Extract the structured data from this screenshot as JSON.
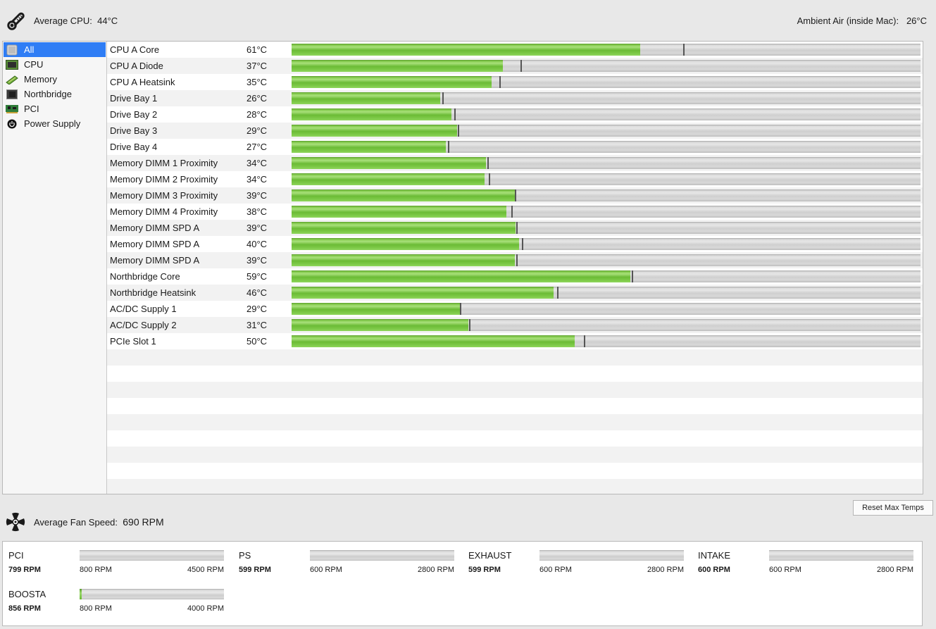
{
  "header": {
    "avg_cpu_label": "Average CPU:",
    "avg_cpu_value": "44°C",
    "ambient_label": "Ambient Air (inside Mac):",
    "ambient_value": "26°C",
    "thermometer_icon": "thermometer-icon"
  },
  "sidebar": {
    "selected": 0,
    "items": [
      {
        "label": "All",
        "icon": "all-mac-pro-icon"
      },
      {
        "label": "CPU",
        "icon": "cpu-chip-icon"
      },
      {
        "label": "Memory",
        "icon": "memory-stick-icon"
      },
      {
        "label": "Northbridge",
        "icon": "northbridge-chip-icon"
      },
      {
        "label": "PCI",
        "icon": "pci-card-icon"
      },
      {
        "label": "Power Supply",
        "icon": "power-icon"
      }
    ]
  },
  "sensors": {
    "scale_max_c": 110,
    "colors": {
      "fill": "#6bbb35",
      "track": "#d4d4d4",
      "max_marker": "#555555",
      "selection": "#2f7df5"
    },
    "rows": [
      {
        "name": "CPU A Core",
        "temp": "61°C",
        "value": 61,
        "max": 68.5
      },
      {
        "name": "CPU A Diode",
        "temp": "37°C",
        "value": 37,
        "max": 40
      },
      {
        "name": "CPU A Heatsink",
        "temp": "35°C",
        "value": 35,
        "max": 36.3
      },
      {
        "name": "Drive Bay 1",
        "temp": "26°C",
        "value": 26,
        "max": 26.4
      },
      {
        "name": "Drive Bay 2",
        "temp": "28°C",
        "value": 28,
        "max": 28.5
      },
      {
        "name": "Drive Bay 3",
        "temp": "29°C",
        "value": 29,
        "max": 29.1
      },
      {
        "name": "Drive Bay 4",
        "temp": "27°C",
        "value": 27,
        "max": 27.3
      },
      {
        "name": "Memory DIMM 1 Proximity",
        "temp": "34°C",
        "value": 34,
        "max": 34.2
      },
      {
        "name": "Memory DIMM 2 Proximity",
        "temp": "34°C",
        "value": 33.8,
        "max": 34.5
      },
      {
        "name": "Memory DIMM 3 Proximity",
        "temp": "39°C",
        "value": 39,
        "max": 39.0
      },
      {
        "name": "Memory DIMM 4 Proximity",
        "temp": "38°C",
        "value": 37.6,
        "max": 38.4
      },
      {
        "name": "Memory DIMM SPD A",
        "temp": "39°C",
        "value": 39.2,
        "max": 39.3
      },
      {
        "name": "Memory DIMM SPD A",
        "temp": "40°C",
        "value": 39.8,
        "max": 40.3
      },
      {
        "name": "Memory DIMM SPD A",
        "temp": "39°C",
        "value": 39.1,
        "max": 39.3
      },
      {
        "name": "Northbridge Core",
        "temp": "59°C",
        "value": 59.3,
        "max": 59.5
      },
      {
        "name": "Northbridge Heatsink",
        "temp": "46°C",
        "value": 45.8,
        "max": 46.4
      },
      {
        "name": "AC/DC Supply 1",
        "temp": "29°C",
        "value": 29.4,
        "max": 29.4
      },
      {
        "name": "AC/DC Supply 2",
        "temp": "31°C",
        "value": 30.9,
        "max": 31.0
      },
      {
        "name": "PCIe Slot 1",
        "temp": "50°C",
        "value": 49.5,
        "max": 51.1
      }
    ]
  },
  "reset_button": {
    "label": "Reset Max Temps"
  },
  "fans_header": {
    "avg_fan_label": "Average Fan Speed:",
    "avg_fan_value": "690 RPM",
    "fan_icon": "fan-icon"
  },
  "fans": [
    {
      "name": "PCI",
      "rpm": "799 RPM",
      "value": 799,
      "min": 800,
      "max": 4500,
      "min_label": "800 RPM",
      "max_label": "4500 RPM"
    },
    {
      "name": "PS",
      "rpm": "599 RPM",
      "value": 599,
      "min": 600,
      "max": 2800,
      "min_label": "600 RPM",
      "max_label": "2800 RPM"
    },
    {
      "name": "EXHAUST",
      "rpm": "599 RPM",
      "value": 599,
      "min": 600,
      "max": 2800,
      "min_label": "600 RPM",
      "max_label": "2800 RPM"
    },
    {
      "name": "INTAKE",
      "rpm": "600 RPM",
      "value": 600,
      "min": 600,
      "max": 2800,
      "min_label": "600 RPM",
      "max_label": "2800 RPM"
    },
    {
      "name": "BOOSTA",
      "rpm": "856 RPM",
      "value": 856,
      "min": 800,
      "max": 4000,
      "min_label": "800 RPM",
      "max_label": "4000 RPM"
    }
  ]
}
